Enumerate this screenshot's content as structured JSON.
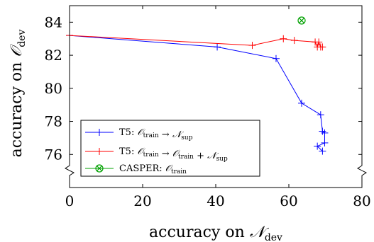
{
  "chart_data": {
    "type": "line",
    "xlabel": "accuracy on 𝒩dev",
    "ylabel": "accuracy on 𝒪dev",
    "xlim": [
      0,
      80
    ],
    "ylim": [
      74,
      85
    ],
    "x_ticks": [
      "0",
      "20",
      "40",
      "60",
      "80"
    ],
    "y_ticks": [
      "76",
      "78",
      "80",
      "82",
      "84"
    ],
    "y_axis_break": true,
    "grid": false,
    "legend_position": "bottom-left",
    "series": [
      {
        "name": "T5: 𝒪train → 𝒩sup",
        "color": "#0000ff",
        "marker": "plus",
        "points": [
          [
            0,
            83.2
          ],
          [
            40.4,
            82.5
          ],
          [
            56.5,
            81.8
          ],
          [
            63.5,
            79.1
          ],
          [
            68.7,
            78.4
          ],
          [
            69.2,
            77.4
          ],
          [
            69.8,
            77.3
          ],
          [
            69.8,
            76.7
          ],
          [
            67.8,
            76.5
          ],
          [
            69.2,
            76.2
          ]
        ]
      },
      {
        "name": "T5: 𝒪train → 𝒪train + 𝒩sup",
        "color": "#ff0000",
        "marker": "plus",
        "points": [
          [
            0,
            83.2
          ],
          [
            50,
            82.6
          ],
          [
            58.5,
            83.0
          ],
          [
            61.5,
            82.9
          ],
          [
            67.2,
            82.8
          ],
          [
            67.8,
            82.5
          ],
          [
            68.2,
            82.8
          ],
          [
            68.7,
            82.5
          ],
          [
            69.2,
            82.5
          ]
        ]
      },
      {
        "name": "CASPER: 𝒪train",
        "color": "#00a000",
        "marker": "otimes",
        "points": [
          [
            63.5,
            84.1
          ]
        ]
      }
    ]
  }
}
